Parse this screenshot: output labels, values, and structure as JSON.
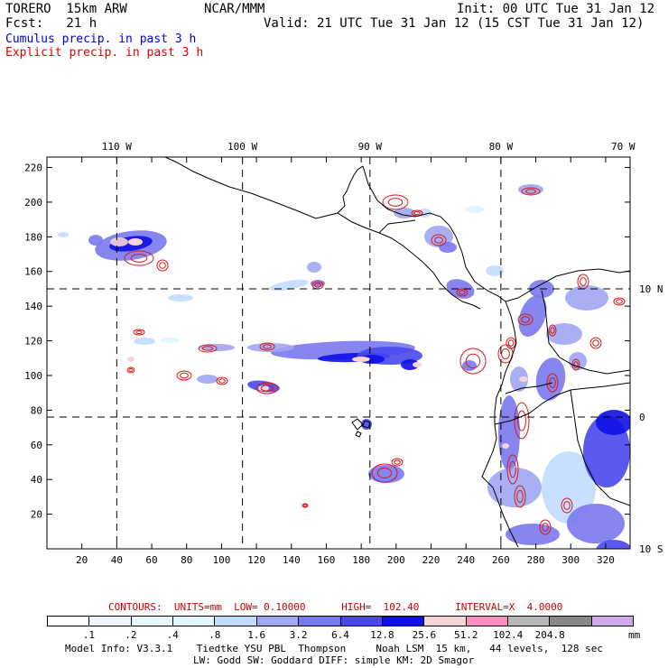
{
  "header": {
    "model": "TORERO  15km ARW",
    "org": "NCAR/MMM",
    "init": "Init: 00 UTC Tue 31 Jan 12",
    "fcst": "Fcst:   21 h",
    "valid": "Valid: 21 UTC Tue 31 Jan 12 (15 CST Tue 31 Jan 12)",
    "line1": "Cumulus precip. in past 3 h",
    "line2": "Explicit precip. in past 3 h",
    "line1_color": "#0000cc",
    "line2_color": "#dd0000"
  },
  "map": {
    "lon_labels": [
      {
        "text": "110 W",
        "gx": 40
      },
      {
        "text": "100 W",
        "gx": 112
      },
      {
        "text": "90 W",
        "gx": 185
      },
      {
        "text": "80 W",
        "gx": 260
      },
      {
        "text": "70 W",
        "gx": 330
      }
    ],
    "lat_labels": [
      {
        "text": "10 N",
        "gy": 150
      },
      {
        "text": "0",
        "gy": 76
      },
      {
        "text": "10 S",
        "gy": 0
      }
    ],
    "x_ticks": [
      "20",
      "40",
      "60",
      "80",
      "100",
      "120",
      "140",
      "160",
      "180",
      "200",
      "220",
      "240",
      "260",
      "280",
      "300",
      "320"
    ],
    "y_ticks": [
      "20",
      "40",
      "60",
      "80",
      "100",
      "120",
      "140",
      "160",
      "180",
      "200",
      "220"
    ],
    "grid_range": {
      "x": [
        0,
        334
      ],
      "y": [
        0,
        226
      ]
    },
    "meridian_x": [
      40,
      112,
      185,
      260
    ],
    "parallel_y": [
      150,
      76
    ]
  },
  "contours": {
    "label": "CONTOURS:  UNITS=mm  LOW= 0.10000      HIGH=  102.40      INTERVAL=X  4.0000"
  },
  "colorbar": {
    "colors": [
      "#ffffff",
      "#eef6ff",
      "#e6f8fc",
      "#e0f5ff",
      "#c2dcff",
      "#a0a6f2",
      "#7a78ee",
      "#4a48ec",
      "#1010e6",
      "#f8d4d8",
      "#f690c0",
      "#b8b8b8",
      "#888888",
      "#d2a8ee"
    ],
    "labels": [
      ".1",
      ".2",
      ".4",
      ".8",
      "1.6",
      "3.2",
      "6.4",
      "12.8",
      "25.6",
      "51.2",
      "102.4",
      "204.8"
    ],
    "unit": "mm"
  },
  "info": {
    "line1": "Model Info: V3.3.1    Tiedtke YSU PBL  Thompson     Noah LSM  15 km,   44 levels,  128 sec",
    "line2": "LW: Godd SW: Goddard DIFF: simple KM: 2D Smagor"
  }
}
